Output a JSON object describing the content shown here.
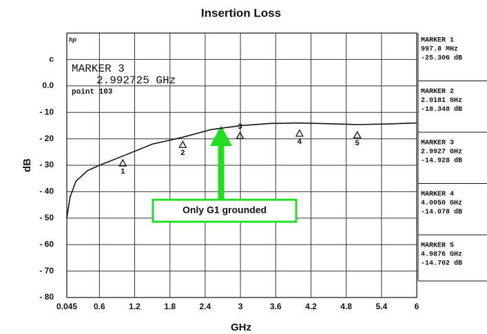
{
  "chart_data": {
    "type": "line",
    "title": "Insertion Loss",
    "x_label": "GHz",
    "y_label": "dB",
    "xlim": [
      0.045,
      6
    ],
    "ylim": [
      -80,
      20
    ],
    "xticks": [
      0.045,
      0.6,
      1.2,
      1.8,
      2.4,
      3,
      3.6,
      4.2,
      4.8,
      5.4,
      6
    ],
    "yticks": [
      {
        "value": -80,
        "label": "- 80"
      },
      {
        "value": -70,
        "label": "- 70"
      },
      {
        "value": -60,
        "label": "- 60"
      },
      {
        "value": -50,
        "label": "- 50"
      },
      {
        "value": -40,
        "label": "- 40"
      },
      {
        "value": -30,
        "label": "- 30"
      },
      {
        "value": -20,
        "label": "- 20"
      },
      {
        "value": -10,
        "label": "- 10"
      },
      {
        "value": 0,
        "label": "0.0"
      },
      {
        "value": 10,
        "label": "c"
      }
    ],
    "grid": true,
    "series": [
      {
        "color": "#111111",
        "x": [
          0.045,
          0.1,
          0.2,
          0.4,
          0.6,
          1,
          1.5,
          2,
          2.5,
          3,
          3.5,
          4,
          4.5,
          5,
          5.5,
          6
        ],
        "values": [
          -50,
          -42,
          -36,
          -32,
          -30,
          -26.5,
          -22,
          -19.5,
          -16.5,
          -15,
          -14.2,
          -14,
          -14.3,
          -14.6,
          -14.4,
          -14
        ]
      }
    ],
    "markers": [
      {
        "label": "1",
        "name": "MARKER 1",
        "x": 0.9978,
        "freq": "997.8 MHz",
        "value": -25.306,
        "reading": "-25.306 dB"
      },
      {
        "label": "2",
        "name": "MARKER 2",
        "x": 2.0181,
        "freq": "2.0181 GHz",
        "value": -18.348,
        "reading": "-18.348 dB"
      },
      {
        "label": "3",
        "name": "MARKER 3",
        "x": 2.9927,
        "freq": "2.9927 GHz",
        "value": -14.928,
        "reading": "-14.928 dB"
      },
      {
        "label": "4",
        "name": "MARKER 4",
        "x": 4.005,
        "freq": "4.0050 GHz",
        "value": -14.078,
        "reading": "-14.078 dB"
      },
      {
        "label": "5",
        "name": "MARKER 5",
        "x": 4.9876,
        "freq": "4.9876 GHz",
        "value": -14.702,
        "reading": "-14.702 dB"
      }
    ],
    "active_marker": {
      "name": "MARKER 3",
      "freq": "2.992725 GHz",
      "point": "point 103"
    },
    "brand": "hp",
    "annotation": "Only G1 grounded"
  }
}
